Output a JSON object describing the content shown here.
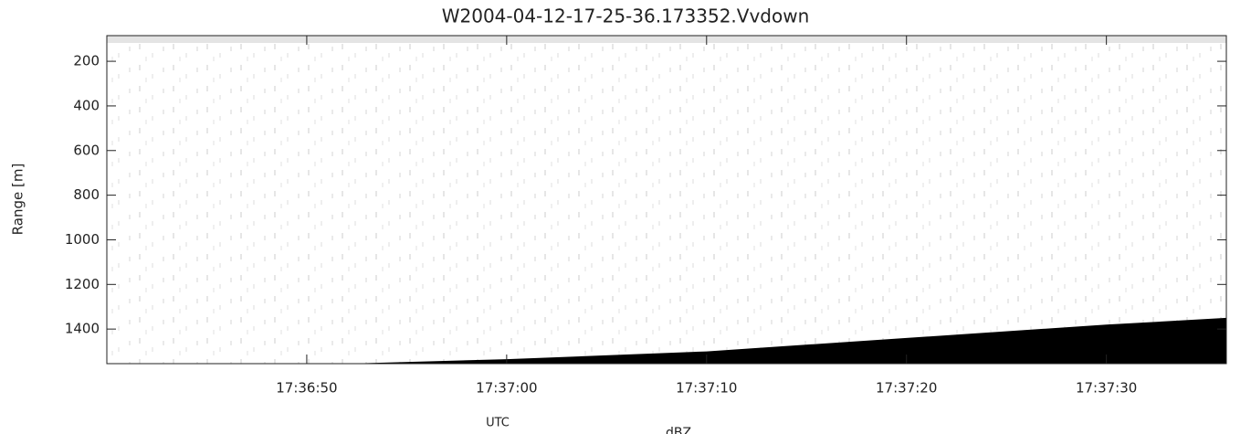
{
  "chart_data": {
    "type": "area",
    "title": "W2004-04-12-17-25-36.173352.Vvdown",
    "x_label": "UTC",
    "y_label": "Range [m]",
    "colorbar_label": "dBZ",
    "x": [
      63412,
      63420,
      63430,
      63440,
      63450,
      63456
    ],
    "series": [
      {
        "color": "#000000",
        "values": [
          1555,
          1535,
          1500,
          1440,
          1380,
          1350
        ]
      }
    ],
    "xlim": [
      63400,
      63456
    ],
    "xticks": [
      {
        "value": 63410,
        "label": "17:36:50"
      },
      {
        "value": 63420,
        "label": "17:37:00"
      },
      {
        "value": 63430,
        "label": "17:37:10"
      },
      {
        "value": 63440,
        "label": "17:37:20"
      },
      {
        "value": 63450,
        "label": "17:37:30"
      }
    ],
    "ylim": [
      1555,
      85
    ],
    "yticks": [
      200,
      400,
      600,
      800,
      1000,
      1200,
      1400
    ]
  }
}
